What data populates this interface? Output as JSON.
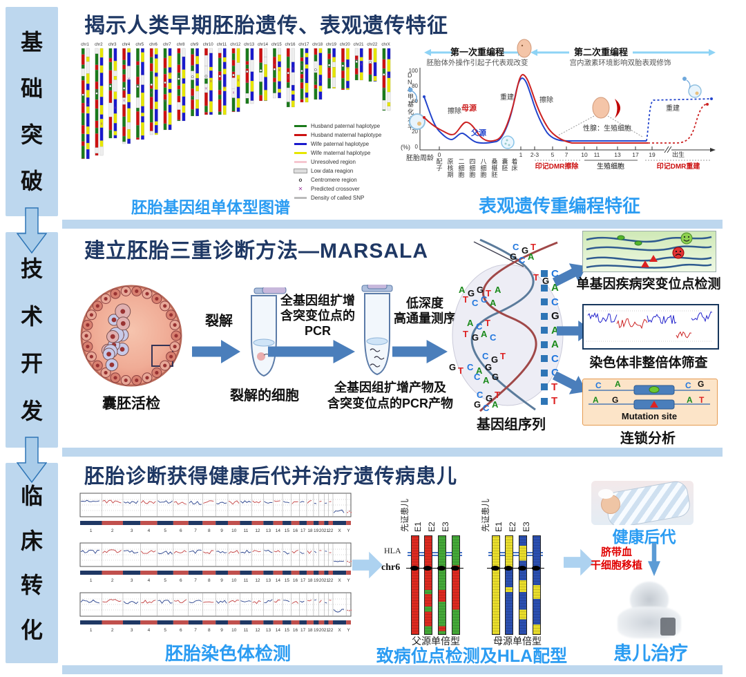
{
  "colors": {
    "title_navy": "#1F3864",
    "caption_blue": "#2B9CF2",
    "band_blue": "#BDD7EE",
    "flow_arrow_blue": "#4A7EBB",
    "light_arrow_blue": "#ADD2F0",
    "hap_red": "#DC2A20",
    "hap_green": "#44A838",
    "hap_yellow": "#E8DC2C",
    "hap_blue": "#2B4FB0"
  },
  "sidebar": {
    "stages": [
      {
        "label": "基础突破"
      },
      {
        "label": "技术开发"
      },
      {
        "label": "临床转化"
      }
    ]
  },
  "section1": {
    "title": "揭示人类早期胚胎遗传、表观遗传特征",
    "haplotype_map": {
      "chromosomes": [
        "chr1",
        "chr2",
        "chr3",
        "chr4",
        "chr5",
        "chr6",
        "chr7",
        "chr8",
        "chr9",
        "chr10",
        "chr11",
        "chr12",
        "chr13",
        "chr14",
        "chr15",
        "chr16",
        "chr17",
        "chr18",
        "chr19",
        "chr20",
        "chr21",
        "chr22",
        "chrX"
      ],
      "heights": [
        160,
        155,
        130,
        138,
        132,
        125,
        118,
        105,
        98,
        96,
        96,
        92,
        80,
        76,
        72,
        85,
        78,
        74,
        58,
        60,
        46,
        48,
        90
      ],
      "legend": [
        {
          "label": "Husband paternal haplotype",
          "kind": "line",
          "color": "#1b7a1b"
        },
        {
          "label": "Husband maternal haplotype",
          "kind": "line",
          "color": "#cc1111"
        },
        {
          "label": "Wife paternal haplotype",
          "kind": "line",
          "color": "#1a1acc"
        },
        {
          "label": "Wife maternal haplotype",
          "kind": "line",
          "color": "#e6e600"
        },
        {
          "label": "Unresolved region",
          "kind": "line",
          "color": "#f6c6cf"
        },
        {
          "label": "Low data reagion",
          "kind": "box",
          "color": "#dddddd"
        },
        {
          "label": "Centromere region",
          "kind": "sym",
          "sym": "o",
          "color": "#333333"
        },
        {
          "label": "Predicted crossover",
          "kind": "sym",
          "sym": "✕",
          "color": "#993399"
        },
        {
          "label": "Density of called SNP",
          "kind": "line",
          "color": "#bbbbbb"
        }
      ],
      "caption": "胚胎基因组单体型图谱"
    },
    "methylation_chart": {
      "ylabel": "DNA甲基化水平",
      "ylabel_unit": "(%)",
      "yticks": [
        "100",
        "80",
        "60",
        "40",
        "20",
        "0"
      ],
      "phase1": {
        "label": "第一次重编程",
        "desc": "胚胎体外操作引起子代表观改变"
      },
      "phase2": {
        "label": "第二次重编程",
        "desc": "宫内激素环境影响双胎表观修饰"
      },
      "curve_labels": {
        "erase1": "擦除",
        "maternal": "母源",
        "paternal": "父源",
        "rebuild1": "重建",
        "erase2": "擦除",
        "gonad": "性腺：生殖细胞",
        "rebuild2": "重建"
      },
      "xlabel": "胚胎周龄",
      "xticks": [
        "0",
        "1",
        "2-3",
        "5",
        "7",
        "10",
        "11",
        "13",
        "17",
        "19"
      ],
      "birth": "出生",
      "stages": [
        "配子",
        "原核期",
        "二细胞",
        "四细胞",
        "八细胞",
        "桑椹胚",
        "囊胚",
        "着床"
      ],
      "annotations": {
        "dmr_erase": "印记DMR擦除",
        "germ": "生殖细胞",
        "dmr_rebuild": "印记DMR重建"
      },
      "caption": "表观遗传重编程特征",
      "chart_data": {
        "type": "line",
        "ylim": [
          0,
          100
        ],
        "x_points": [
          "配子(0周)",
          "原核期",
          "二细胞",
          "四细胞",
          "八细胞",
          "桑椹胚",
          "囊胚",
          "着床(1周)",
          "2-3周",
          "5周",
          "7周",
          "10-19周(生殖细胞)",
          "出生"
        ],
        "series": [
          {
            "name": "母源",
            "color": "#CC2222",
            "values": [
              38,
              23,
              30,
              33,
              20,
              8,
              12,
              94,
              60,
              12,
              7,
              6,
              55
            ]
          },
          {
            "name": "父源",
            "color": "#2244CC",
            "values": [
              65,
              23,
              13,
              22,
              9,
              5,
              8,
              90,
              55,
              14,
              10,
              62,
              62
            ]
          }
        ]
      }
    }
  },
  "section2": {
    "title": "建立胚胎三重诊断方法—MARSALA",
    "flow": {
      "biopsy_label": "囊胚活检",
      "arrow1_label": "裂解",
      "tube1_label": "裂解的细胞",
      "arrow2_line1": "全基因组扩增",
      "arrow2_line2": "含突变位点的PCR",
      "tube2_label_line1": "全基因组扩增产物及",
      "tube2_label_line2": "含突变位点的PCR产物",
      "arrow3_line1": "低深度",
      "arrow3_line2": "高通量测序",
      "genome_label": "基因组序列",
      "read_sequence": [
        "C",
        "A",
        "C",
        "G",
        "A",
        "A",
        "C",
        "C",
        "T",
        "T"
      ],
      "helix_letter_groups": [
        "CGT",
        "GCA",
        "TG",
        "AGGTA",
        "TCCA",
        "ACT",
        "TGAC",
        "CGT",
        "GTCAG",
        "CAG",
        "CGT",
        "GCA"
      ]
    },
    "outputs": [
      {
        "caption": "单基因疾病突变位点检测"
      },
      {
        "caption": "染色体非整倍体筛查"
      },
      {
        "caption": "连锁分析",
        "box_text": "Mutation site",
        "letters_top": [
          "C",
          "A",
          "C",
          "G"
        ],
        "letters_bottom": [
          "A",
          "G",
          "A",
          "T"
        ]
      }
    ]
  },
  "section3": {
    "title": "胚胎诊断获得健康后代并治疗遗传病患儿",
    "cnv": {
      "chrom_labels": [
        "1",
        "2",
        "3",
        "4",
        "5",
        "6",
        "7",
        "8",
        "9",
        "10",
        "11",
        "12",
        "13",
        "14",
        "15",
        "16",
        "17",
        "18",
        "19",
        "20",
        "21",
        "22",
        "X",
        "Y"
      ],
      "plot_count": 3,
      "caption": "胚胎染色体检测"
    },
    "hla": {
      "sample_labels": [
        "先证患儿",
        "E1",
        "E2",
        "E3"
      ],
      "hla_label": "HLA",
      "chr_label": "chr6",
      "paternal_caption": "父源单倍型",
      "maternal_caption": "母源单倍型",
      "paternal_bars": [
        [
          [
            "red",
            1
          ]
        ],
        [
          [
            "red",
            0.55
          ],
          [
            "green",
            0.04
          ],
          [
            "red",
            0.13
          ],
          [
            "green",
            0.05
          ],
          [
            "red",
            0.15
          ],
          [
            "green",
            0.08
          ]
        ],
        [
          [
            "green",
            0.55
          ],
          [
            "red",
            0.12
          ],
          [
            "green",
            0.25
          ],
          [
            "red",
            0.05
          ],
          [
            "green",
            0.03
          ]
        ],
        [
          [
            "green",
            0.3
          ],
          [
            "red",
            0.45
          ],
          [
            "green",
            0.25
          ]
        ]
      ],
      "maternal_bars": [
        [
          [
            "yellow",
            1
          ]
        ],
        [
          [
            "yellow",
            0.32
          ],
          [
            "blue",
            0.2
          ],
          [
            "yellow",
            0.05
          ],
          [
            "blue",
            0.43
          ]
        ],
        [
          [
            "blue",
            0.1
          ],
          [
            "yellow",
            0.15
          ],
          [
            "blue",
            0.2
          ],
          [
            "yellow",
            0.12
          ],
          [
            "blue",
            0.18
          ],
          [
            "yellow",
            0.1
          ],
          [
            "blue",
            0.15
          ]
        ],
        [
          [
            "blue",
            0.5
          ],
          [
            "yellow",
            0.14
          ],
          [
            "blue",
            0.26
          ],
          [
            "yellow",
            0.1
          ]
        ]
      ],
      "caption": "致病位点检测及HLA配型"
    },
    "outcome": {
      "healthy_label": "健康后代",
      "transplant_line1": "脐带血",
      "transplant_line2": "干细胞移植",
      "patient_label": "患儿治疗"
    }
  }
}
